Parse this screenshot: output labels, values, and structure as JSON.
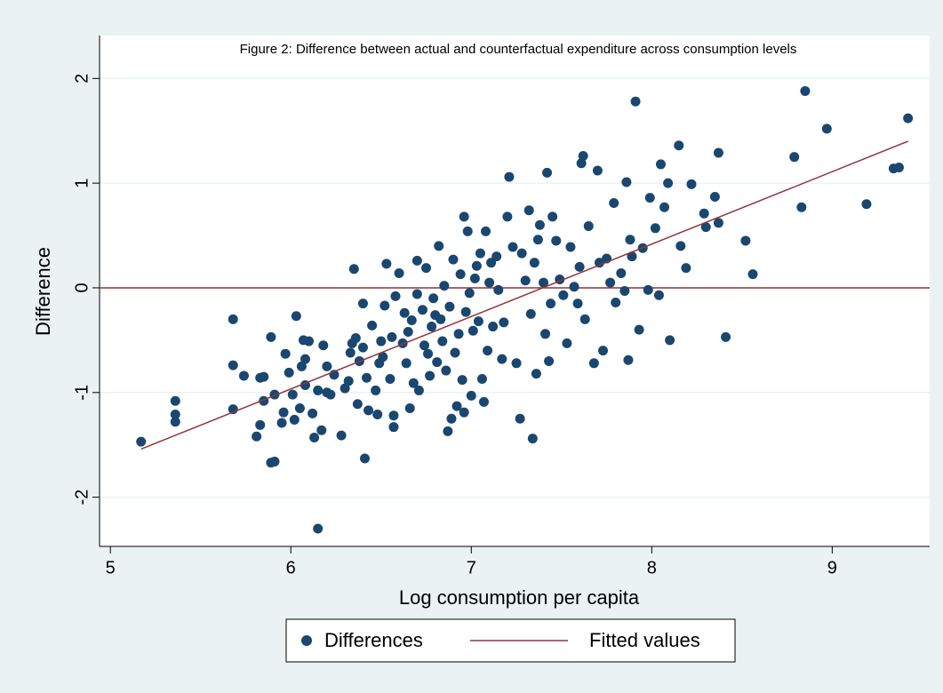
{
  "chart_data": {
    "type": "scatter",
    "title": "Figure 2: Difference between actual and counterfactual expenditure across consumption levels",
    "xlabel": "Log consumption per capita",
    "ylabel": "Difference",
    "xlim": [
      4.94,
      9.54
    ],
    "ylim": [
      -2.47,
      2.41
    ],
    "xticks": [
      5,
      6,
      7,
      8,
      9
    ],
    "yticks": [
      -2,
      -1,
      0,
      1,
      2
    ],
    "grid": true,
    "legend": "bottom",
    "hlines": [
      {
        "value": 0,
        "color": "#90353b"
      }
    ],
    "series": [
      {
        "name": "Differences",
        "type": "scatter",
        "color": "#1a476f",
        "x": [
          5.17,
          5.36,
          5.36,
          5.36,
          5.68,
          5.68,
          5.68,
          5.74,
          5.81,
          5.83,
          5.83,
          5.85,
          5.85,
          5.89,
          5.91,
          5.89,
          5.91,
          5.95,
          5.96,
          5.97,
          5.99,
          6.01,
          6.02,
          6.03,
          6.05,
          6.06,
          6.07,
          6.08,
          6.08,
          6.1,
          6.12,
          6.13,
          6.15,
          6.15,
          6.17,
          6.18,
          6.2,
          6.2,
          6.22,
          6.24,
          6.28,
          6.3,
          6.32,
          6.33,
          6.34,
          6.35,
          6.36,
          6.37,
          6.38,
          6.4,
          6.4,
          6.41,
          6.42,
          6.43,
          6.45,
          6.47,
          6.48,
          6.49,
          6.5,
          6.51,
          6.52,
          6.53,
          6.55,
          6.56,
          6.57,
          6.57,
          6.58,
          6.6,
          6.62,
          6.63,
          6.64,
          6.65,
          6.66,
          6.67,
          6.68,
          6.7,
          6.7,
          6.71,
          6.73,
          6.74,
          6.75,
          6.76,
          6.77,
          6.78,
          6.79,
          6.8,
          6.81,
          6.82,
          6.83,
          6.84,
          6.85,
          6.86,
          6.87,
          6.88,
          6.89,
          6.9,
          6.91,
          6.92,
          6.93,
          6.94,
          6.95,
          6.96,
          6.96,
          6.97,
          6.98,
          6.99,
          7.0,
          7.01,
          7.02,
          7.03,
          7.04,
          7.05,
          7.06,
          7.07,
          7.08,
          7.09,
          7.1,
          7.11,
          7.12,
          7.14,
          7.15,
          7.17,
          7.18,
          7.2,
          7.21,
          7.23,
          7.25,
          7.27,
          7.28,
          7.3,
          7.32,
          7.33,
          7.34,
          7.35,
          7.36,
          7.37,
          7.38,
          7.4,
          7.41,
          7.42,
          7.43,
          7.44,
          7.45,
          7.47,
          7.49,
          7.51,
          7.53,
          7.55,
          7.57,
          7.59,
          7.6,
          7.61,
          7.62,
          7.63,
          7.65,
          7.68,
          7.7,
          7.71,
          7.73,
          7.75,
          7.77,
          7.79,
          7.8,
          7.83,
          7.85,
          7.86,
          7.87,
          7.88,
          7.89,
          7.91,
          7.93,
          7.95,
          7.98,
          7.99,
          8.02,
          8.04,
          8.05,
          8.07,
          8.09,
          8.1,
          8.15,
          8.16,
          8.19,
          8.22,
          8.29,
          8.3,
          8.35,
          8.37,
          8.37,
          8.41,
          8.52,
          8.56,
          8.79,
          8.83,
          8.85,
          8.97,
          9.19,
          9.34,
          9.37,
          9.42
        ],
        "y": [
          -1.47,
          -1.08,
          -1.21,
          -1.28,
          -0.3,
          -0.74,
          -1.16,
          -0.84,
          -1.42,
          -1.31,
          -0.86,
          -0.85,
          -1.08,
          -1.67,
          -1.66,
          -0.47,
          -1.02,
          -1.29,
          -1.19,
          -0.63,
          -0.81,
          -1.02,
          -1.26,
          -0.27,
          -1.15,
          -0.75,
          -0.5,
          -0.68,
          -0.93,
          -0.51,
          -1.2,
          -1.43,
          -2.3,
          -0.98,
          -1.36,
          -0.55,
          -1.0,
          -0.75,
          -1.02,
          -0.83,
          -1.41,
          -0.96,
          -0.89,
          -0.62,
          -0.53,
          0.18,
          -0.48,
          -1.11,
          -0.7,
          -0.15,
          -0.57,
          -1.63,
          -0.86,
          -1.17,
          -0.36,
          -0.98,
          -1.21,
          -0.72,
          -0.51,
          -0.66,
          -0.17,
          0.23,
          -0.87,
          -0.47,
          -1.22,
          -1.33,
          -0.08,
          0.14,
          -0.53,
          -0.24,
          -0.72,
          -0.42,
          -1.15,
          -0.31,
          -0.91,
          -0.06,
          0.26,
          -0.98,
          -0.21,
          -0.55,
          0.19,
          -0.63,
          -0.84,
          -0.37,
          -0.1,
          -0.26,
          -0.71,
          0.4,
          -0.3,
          -0.51,
          0.02,
          -0.79,
          -1.37,
          -0.18,
          -1.25,
          0.27,
          -0.62,
          -1.13,
          -0.44,
          0.13,
          -0.88,
          -1.19,
          0.68,
          -0.23,
          0.54,
          -0.05,
          -1.03,
          -0.41,
          0.09,
          0.21,
          -0.32,
          0.33,
          -0.87,
          -1.09,
          0.54,
          -0.6,
          0.05,
          0.24,
          -0.37,
          0.3,
          -0.02,
          -0.68,
          -0.33,
          0.68,
          1.06,
          0.39,
          -0.72,
          -1.25,
          0.33,
          0.07,
          0.74,
          -0.25,
          -1.44,
          0.24,
          -0.82,
          0.46,
          0.6,
          0.05,
          -0.44,
          1.1,
          -0.7,
          -0.15,
          0.68,
          0.45,
          0.08,
          -0.07,
          -0.53,
          0.39,
          0.01,
          -0.15,
          0.2,
          1.19,
          1.26,
          -0.3,
          0.59,
          -0.72,
          1.12,
          0.24,
          -0.6,
          0.28,
          0.05,
          0.81,
          -0.14,
          0.14,
          -0.03,
          1.01,
          -0.69,
          0.46,
          0.3,
          1.78,
          -0.4,
          0.38,
          -0.02,
          0.86,
          0.57,
          -0.07,
          1.18,
          0.77,
          1.0,
          -0.5,
          1.36,
          0.4,
          0.19,
          0.99,
          0.71,
          0.58,
          0.87,
          1.29,
          0.62,
          -0.47,
          0.45,
          0.13,
          1.25,
          0.77,
          1.88,
          1.52,
          0.8,
          1.14,
          1.15,
          1.62
        ]
      },
      {
        "name": "Fitted values",
        "type": "line",
        "color": "#90353b",
        "x": [
          5.17,
          9.42
        ],
        "y": [
          -1.54,
          1.4
        ]
      }
    ]
  }
}
